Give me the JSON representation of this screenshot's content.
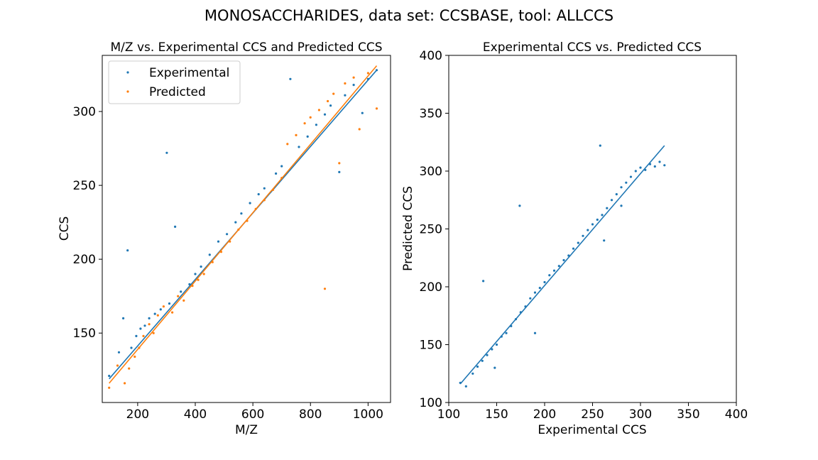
{
  "figure": {
    "suptitle": "MONOSACCHARIDES, data set: CCSBASE, tool: ALLCCS"
  },
  "colors": {
    "experimental": "#1f77b4",
    "predicted": "#ff7f0e"
  },
  "chart_data": [
    {
      "type": "scatter",
      "title": "M/Z vs. Experimental CCS and Predicted CCS",
      "xlabel": "M/Z",
      "ylabel": "CCS",
      "xlim": [
        77,
        1078
      ],
      "ylim": [
        103,
        338
      ],
      "xticks": [
        200,
        400,
        600,
        800,
        1000
      ],
      "yticks": [
        150,
        200,
        250,
        300
      ],
      "grid": false,
      "legend": "top-left",
      "series": [
        {
          "name": "Experimental",
          "color": "#1f77b4",
          "points": [
            [
              101,
              121
            ],
            [
              135,
              137
            ],
            [
              150,
              160
            ],
            [
              165,
              206
            ],
            [
              178,
              140
            ],
            [
              195,
              148
            ],
            [
              210,
              153
            ],
            [
              225,
              155
            ],
            [
              240,
              160
            ],
            [
              260,
              163
            ],
            [
              280,
              166
            ],
            [
              301,
              272
            ],
            [
              310,
              170
            ],
            [
              330,
              222
            ],
            [
              350,
              178
            ],
            [
              380,
              183
            ],
            [
              400,
              190
            ],
            [
              420,
              195
            ],
            [
              450,
              203
            ],
            [
              480,
              212
            ],
            [
              510,
              217
            ],
            [
              540,
              225
            ],
            [
              560,
              231
            ],
            [
              590,
              238
            ],
            [
              620,
              244
            ],
            [
              640,
              248
            ],
            [
              680,
              258
            ],
            [
              700,
              263
            ],
            [
              730,
              322
            ],
            [
              760,
              276
            ],
            [
              790,
              283
            ],
            [
              820,
              291
            ],
            [
              850,
              298
            ],
            [
              870,
              304
            ],
            [
              900,
              259
            ],
            [
              920,
              311
            ],
            [
              950,
              318
            ],
            [
              980,
              299
            ],
            [
              1000,
              322
            ],
            [
              1030,
              328
            ]
          ],
          "fit": [
            [
              101,
              119
            ],
            [
              1030,
              328
            ]
          ]
        },
        {
          "name": "Predicted",
          "color": "#ff7f0e",
          "points": [
            [
              101,
              113
            ],
            [
              130,
              128
            ],
            [
              155,
              116
            ],
            [
              170,
              126
            ],
            [
              190,
              134
            ],
            [
              205,
              140
            ],
            [
              220,
              148
            ],
            [
              240,
              156
            ],
            [
              255,
              150
            ],
            [
              270,
              162
            ],
            [
              290,
              168
            ],
            [
              320,
              164
            ],
            [
              340,
              175
            ],
            [
              360,
              172
            ],
            [
              390,
              182
            ],
            [
              410,
              186
            ],
            [
              430,
              190
            ],
            [
              460,
              198
            ],
            [
              490,
              205
            ],
            [
              520,
              212
            ],
            [
              550,
              220
            ],
            [
              580,
              226
            ],
            [
              610,
              234
            ],
            [
              640,
              240
            ],
            [
              670,
              247
            ],
            [
              700,
              255
            ],
            [
              720,
              278
            ],
            [
              750,
              284
            ],
            [
              780,
              292
            ],
            [
              800,
              296
            ],
            [
              830,
              301
            ],
            [
              850,
              180
            ],
            [
              860,
              307
            ],
            [
              880,
              312
            ],
            [
              900,
              265
            ],
            [
              920,
              319
            ],
            [
              950,
              323
            ],
            [
              970,
              288
            ],
            [
              1000,
              326
            ],
            [
              1030,
              302
            ]
          ],
          "fit": [
            [
              101,
              116
            ],
            [
              1030,
              331
            ]
          ]
        }
      ]
    },
    {
      "type": "scatter",
      "title": "Experimental CCS vs. Predicted CCS",
      "xlabel": "Experimental CCS",
      "ylabel": "Predicted CCS",
      "xlim": [
        100,
        400
      ],
      "ylim": [
        100,
        400
      ],
      "xticks": [
        100,
        150,
        200,
        250,
        300,
        350,
        400
      ],
      "yticks": [
        100,
        150,
        200,
        250,
        300,
        350,
        400
      ],
      "grid": false,
      "series": [
        {
          "name": "",
          "color": "#1f77b4",
          "points": [
            [
              112,
              117
            ],
            [
              118,
              114
            ],
            [
              125,
              125
            ],
            [
              130,
              131
            ],
            [
              135,
              136
            ],
            [
              136,
              205
            ],
            [
              140,
              141
            ],
            [
              145,
              146
            ],
            [
              150,
              150
            ],
            [
              155,
              157
            ],
            [
              160,
              160
            ],
            [
              165,
              166
            ],
            [
              170,
              172
            ],
            [
              174,
              270
            ],
            [
              175,
              178
            ],
            [
              180,
              183
            ],
            [
              185,
              190
            ],
            [
              190,
              195
            ],
            [
              195,
              199
            ],
            [
              200,
              204
            ],
            [
              205,
              210
            ],
            [
              210,
              214
            ],
            [
              215,
              218
            ],
            [
              220,
              223
            ],
            [
              225,
              227
            ],
            [
              230,
              233
            ],
            [
              235,
              238
            ],
            [
              240,
              244
            ],
            [
              245,
              249
            ],
            [
              250,
              254
            ],
            [
              255,
              258
            ],
            [
              258,
              322
            ],
            [
              260,
              262
            ],
            [
              265,
              268
            ],
            [
              270,
              275
            ],
            [
              275,
              280
            ],
            [
              280,
              286
            ],
            [
              285,
              290
            ],
            [
              290,
              295
            ],
            [
              295,
              300
            ],
            [
              300,
              303
            ],
            [
              305,
              301
            ],
            [
              310,
              306
            ],
            [
              315,
              304
            ],
            [
              320,
              308
            ],
            [
              325,
              305
            ],
            [
              262,
              240
            ],
            [
              280,
              270
            ],
            [
              190,
              160
            ],
            [
              148,
              130
            ]
          ],
          "fit": [
            [
              112,
              116
            ],
            [
              325,
              322
            ]
          ]
        }
      ]
    }
  ]
}
